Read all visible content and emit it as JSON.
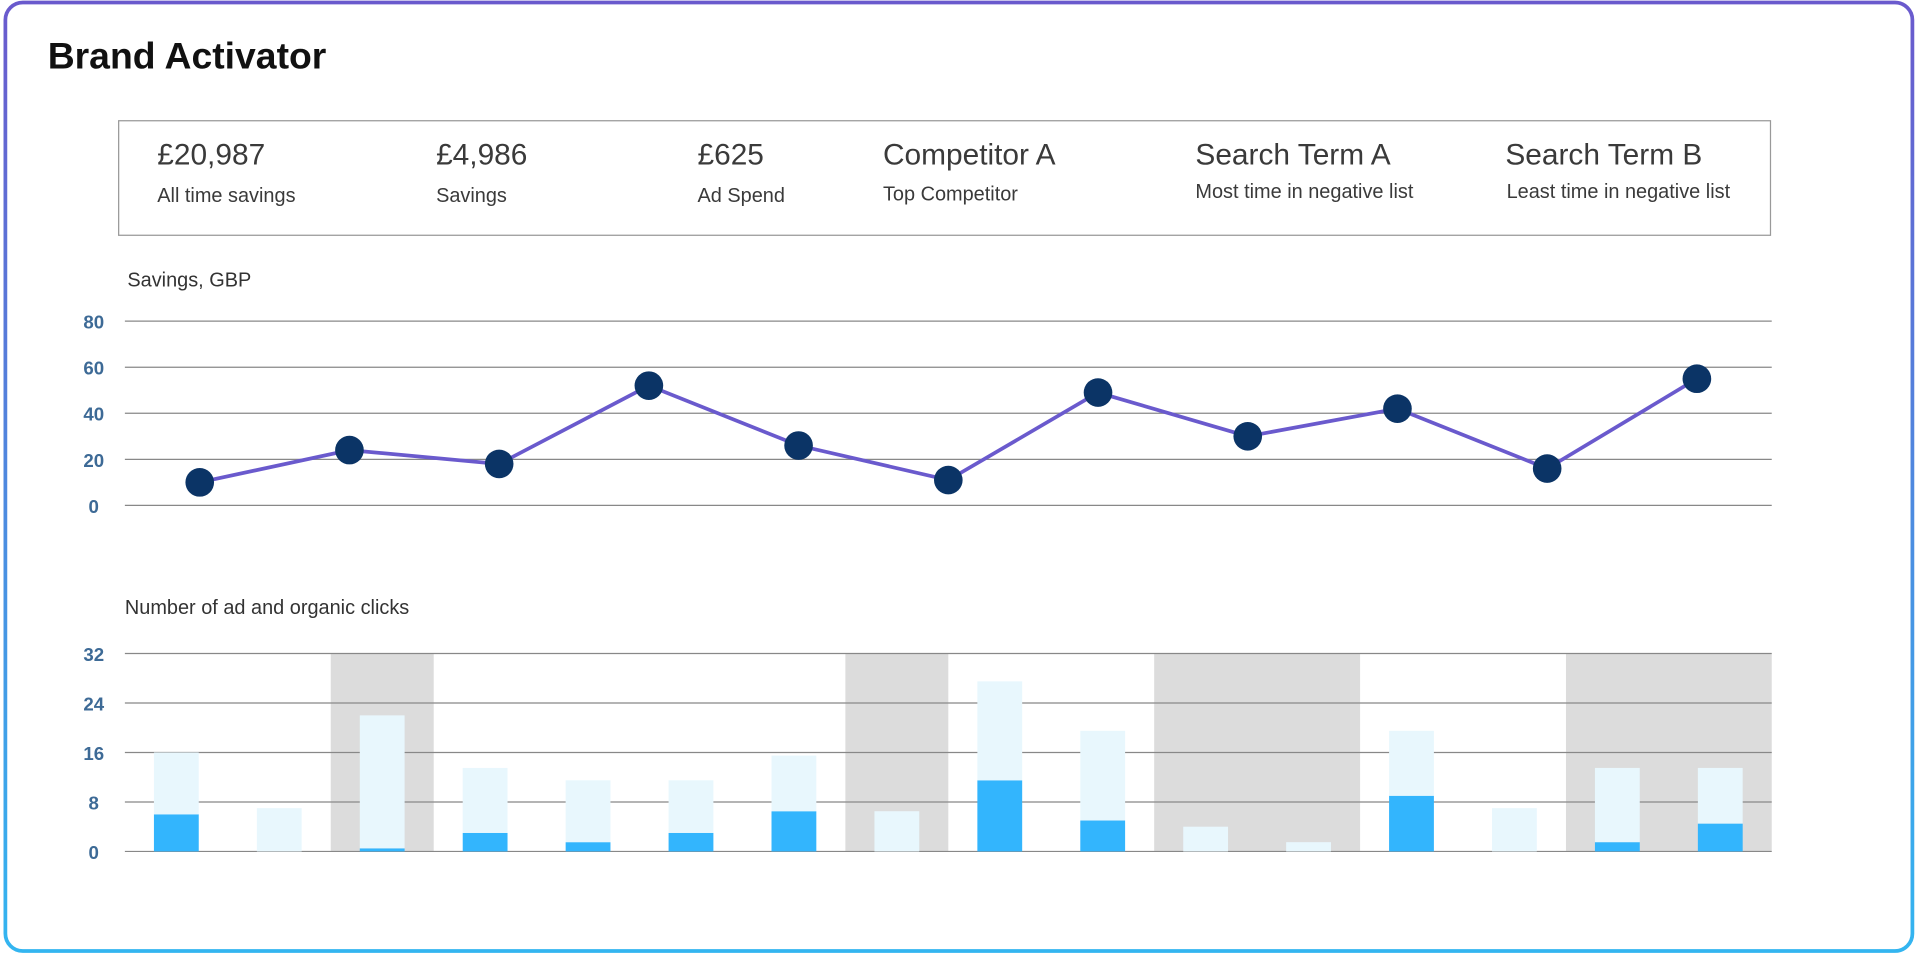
{
  "title": "Brand Activator",
  "kpis": [
    {
      "value": "£20,987",
      "label": "All time savings"
    },
    {
      "value": "£4,986",
      "label": "Savings"
    },
    {
      "value": "£625",
      "label": "Ad Spend"
    },
    {
      "value": "Competitor A",
      "label": "Top Competitor"
    },
    {
      "value": "Search Term A",
      "label": "Most time in negative list"
    },
    {
      "value": "Search Term B",
      "label": "Least time in negative list"
    }
  ],
  "chart_data": [
    {
      "type": "line",
      "title": "Savings, GBP",
      "categories": [
        null,
        null,
        null,
        null,
        null,
        null,
        null,
        null,
        null,
        null,
        null
      ],
      "series": [
        {
          "color": "#6a5acd",
          "marker_color": "#0b3466",
          "values": [
            10,
            24,
            18,
            52,
            26,
            11,
            49,
            30,
            42,
            16,
            55
          ]
        }
      ],
      "ylim": [
        0,
        80
      ],
      "yticks": [
        0,
        20,
        40,
        60,
        80
      ],
      "grid": true
    },
    {
      "type": "bar",
      "stacked": true,
      "title": "Number of ad and organic clicks",
      "categories": [
        null,
        null,
        null,
        null,
        null,
        null,
        null,
        null,
        null,
        null,
        null,
        null,
        null,
        null,
        null,
        null
      ],
      "series": [
        {
          "color": "#33b5fd",
          "values": [
            6,
            0,
            0.5,
            3,
            1.5,
            3,
            6.5,
            0,
            11.5,
            5,
            0,
            0,
            9,
            0,
            1.5,
            4.5
          ]
        },
        {
          "color": "#e8f7fd",
          "values": [
            10,
            7,
            21.5,
            10.5,
            10,
            8.5,
            9,
            6.5,
            16,
            14.5,
            4,
            1.5,
            10.5,
            7,
            12,
            9
          ]
        }
      ],
      "ylim": [
        0,
        32
      ],
      "yticks": [
        0,
        8,
        16,
        24,
        32
      ],
      "grid": true
    }
  ]
}
